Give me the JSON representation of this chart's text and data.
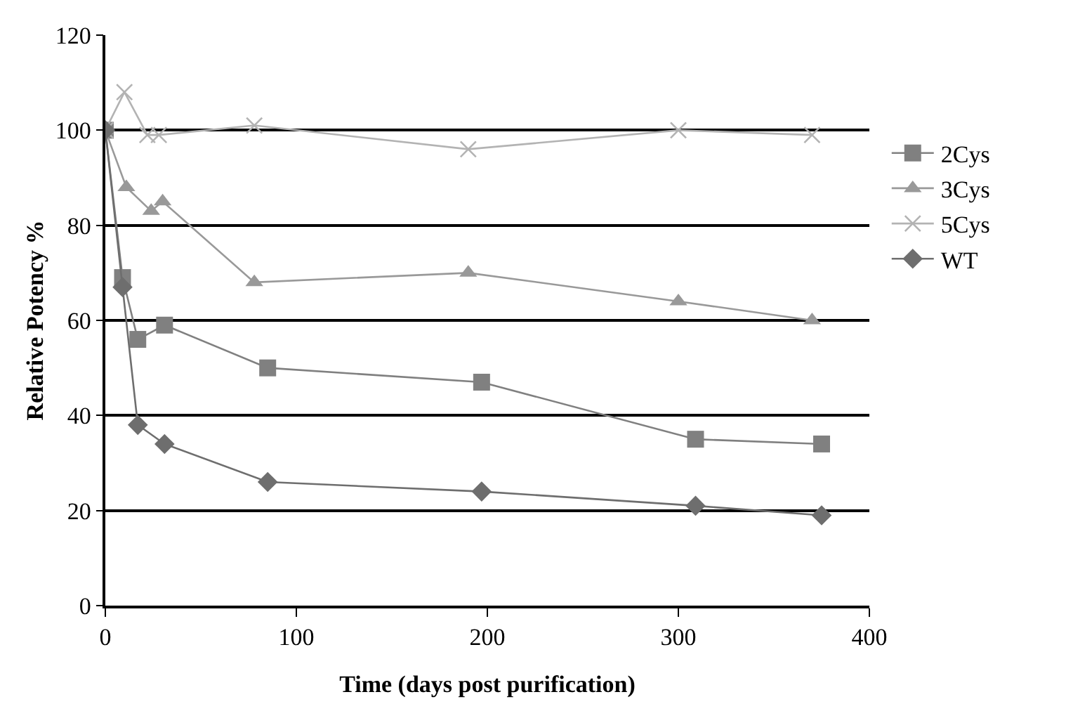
{
  "chart_data": {
    "type": "line",
    "xlabel": "Time (days post purification)",
    "ylabel": "Relative Potency %",
    "xlim": [
      0,
      400
    ],
    "xticks": [
      0,
      100,
      200,
      300,
      400
    ],
    "ylim": [
      0,
      120
    ],
    "yticks": [
      0,
      20,
      40,
      60,
      80,
      100,
      120
    ],
    "grid": "y",
    "legend": "right",
    "line_style": "solid",
    "series": [
      {
        "name": "2Cys",
        "color": "#808080",
        "marker": "square",
        "x": [
          0,
          9,
          17,
          31,
          85,
          197,
          309,
          375
        ],
        "values": [
          100,
          69,
          56,
          59,
          50,
          47,
          35,
          34
        ]
      },
      {
        "name": "3Cys",
        "color": "#999999",
        "marker": "triangle",
        "x": [
          0,
          11,
          24,
          30,
          78,
          190,
          300,
          370
        ],
        "values": [
          100,
          88,
          83,
          85,
          68,
          70,
          64,
          60
        ]
      },
      {
        "name": "5Cys",
        "color": "#b3b3b3",
        "marker": "cross",
        "x": [
          0,
          10,
          22,
          28,
          78,
          190,
          300,
          370
        ],
        "values": [
          100,
          108,
          99,
          99,
          101,
          96,
          100,
          99
        ]
      },
      {
        "name": "WT",
        "color": "#6e6e6e",
        "marker": "diamond",
        "x": [
          0,
          9,
          17,
          31,
          85,
          197,
          309,
          375
        ],
        "values": [
          100,
          67,
          38,
          34,
          26,
          24,
          21,
          19
        ]
      }
    ]
  }
}
